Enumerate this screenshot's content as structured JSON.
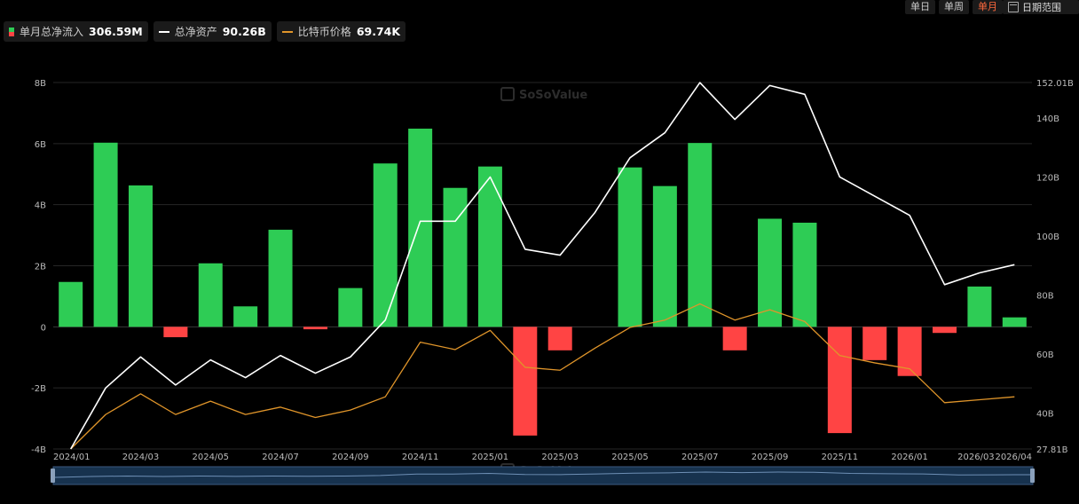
{
  "legend": [
    {
      "label": "单月总净流入",
      "value": "306.59M",
      "kind": "bar",
      "colors": [
        "#2ecc55",
        "#ff4444"
      ]
    },
    {
      "label": "总净资产",
      "value": "90.26B",
      "kind": "line",
      "color": "#ffffff"
    },
    {
      "label": "比特币价格",
      "value": "69.74K",
      "kind": "line",
      "color": "#e0952a"
    }
  ],
  "range_buttons": [
    {
      "label": "单日",
      "active": false
    },
    {
      "label": "单周",
      "active": false
    },
    {
      "label": "单月",
      "active": true
    }
  ],
  "date_range_label": "日期范围",
  "watermark": "SoSoValue",
  "chart_data": {
    "type": "bar",
    "categories": [
      "2024/01",
      "2024/02",
      "2024/03",
      "2024/04",
      "2024/05",
      "2024/06",
      "2024/07",
      "2024/08",
      "2024/09",
      "2024/10",
      "2024/11",
      "2024/12",
      "2025/01",
      "2025/02",
      "2025/03",
      "2025/04",
      "2025/05",
      "2025/06",
      "2025/07",
      "2025/08",
      "2025/09",
      "2025/10",
      "2025/11",
      "2025/12",
      "2026/01",
      "2026/02",
      "2026/03",
      "2026/04"
    ],
    "x_tick_labels": [
      "2024/01",
      "2024/03",
      "2024/05",
      "2024/07",
      "2024/09",
      "2024/11",
      "2025/01",
      "2025/03",
      "2025/05",
      "2025/07",
      "2025/09",
      "2025/11",
      "2026/01",
      "2026/03",
      "2026/04"
    ],
    "left_axis": {
      "ticks": [
        "8B",
        "6B",
        "4B",
        "2B",
        "0",
        "-2B",
        "-4B"
      ],
      "ylim": [
        -4,
        8
      ],
      "unit": "B"
    },
    "right_axis": {
      "ticks": [
        "152.01B",
        "140B",
        "120B",
        "100B",
        "80B",
        "60B",
        "40B",
        "27.81B"
      ],
      "ylim": [
        27.81,
        152.01
      ]
    },
    "positive_color": "#2ecc55",
    "negative_color": "#ff4444",
    "series": [
      {
        "name": "单月总净流入",
        "axis": "left",
        "kind": "bar",
        "values": [
          1.47,
          6.03,
          4.63,
          -0.34,
          2.08,
          0.67,
          3.18,
          -0.08,
          1.27,
          5.35,
          6.49,
          4.55,
          5.25,
          -3.56,
          -0.77,
          0.0,
          5.22,
          4.61,
          6.02,
          -0.77,
          3.54,
          3.41,
          -3.48,
          -1.09,
          -1.61,
          -0.2,
          1.32,
          0.31
        ]
      },
      {
        "name": "总净资产",
        "axis": "right",
        "kind": "line",
        "color": "#ffffff",
        "values": [
          27.81,
          48.5,
          59.0,
          49.5,
          58.0,
          52.0,
          59.5,
          53.5,
          59.0,
          71.5,
          105.0,
          105.0,
          120.0,
          95.5,
          93.5,
          108.0,
          126.5,
          135.0,
          152.0,
          139.5,
          151.0,
          148.0,
          120.0,
          113.5,
          107.0,
          83.5,
          87.5,
          90.26
        ]
      },
      {
        "name": "比特币价格",
        "axis": "right",
        "kind": "line",
        "color": "#e0952a",
        "values": [
          27.81,
          39.5,
          46.5,
          39.5,
          44.0,
          39.5,
          42.0,
          38.5,
          41.0,
          45.5,
          64.0,
          61.5,
          68.0,
          55.5,
          54.5,
          62.0,
          69.0,
          71.5,
          77.0,
          71.5,
          75.0,
          71.0,
          59.5,
          57.0,
          55.0,
          43.5,
          44.5,
          45.5
        ]
      }
    ]
  }
}
